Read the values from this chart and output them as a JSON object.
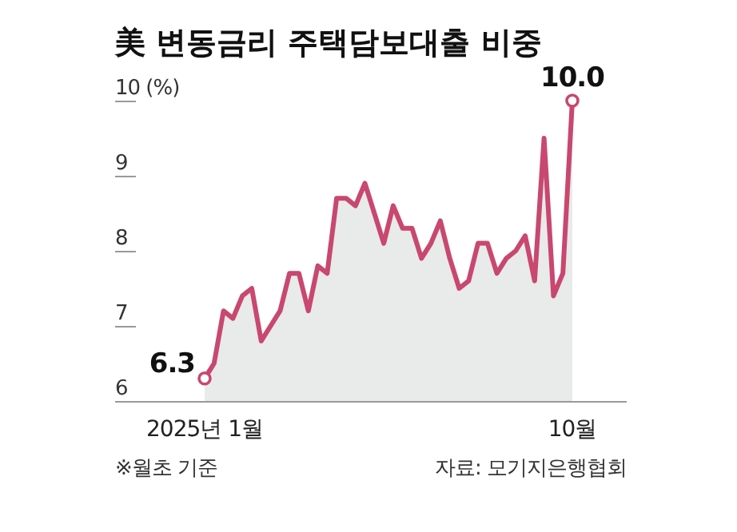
{
  "chart_data": {
    "type": "area",
    "title": "美 변동금리 주택담보대출 비중",
    "categories": [
      "2025년 1월",
      null,
      null,
      null,
      null,
      null,
      null,
      null,
      null,
      null,
      null,
      null,
      null,
      null,
      null,
      null,
      null,
      null,
      null,
      null,
      null,
      null,
      null,
      null,
      null,
      null,
      null,
      null,
      null,
      null,
      null,
      null,
      null,
      null,
      null,
      null,
      null,
      null,
      null,
      "10월"
    ],
    "series": [
      {
        "color": "#c8486f",
        "values": [
          6.3,
          6.5,
          7.2,
          7.1,
          7.4,
          7.5,
          6.8,
          7.0,
          7.2,
          7.7,
          7.7,
          7.2,
          7.8,
          7.7,
          8.7,
          8.7,
          8.6,
          8.9,
          8.5,
          8.1,
          8.6,
          8.3,
          8.3,
          7.9,
          8.1,
          8.4,
          7.9,
          7.5,
          7.6,
          8.1,
          8.1,
          7.7,
          7.9,
          8.0,
          8.2,
          7.6,
          9.5,
          7.4,
          7.7,
          10.0
        ]
      }
    ],
    "ylim": [
      6,
      10
    ],
    "yticks": [
      6,
      7,
      8,
      9,
      {
        "value": 10,
        "label": "10 (%)"
      }
    ],
    "grid": false,
    "marker": "none",
    "line_style": "solid",
    "annotations": [
      {
        "text": "6.3",
        "x": "2025년 1월",
        "y": 6.3
      },
      {
        "text": "10.0",
        "x": "10월",
        "y": 10.0
      },
      "※월초 기준",
      "자료: 모기지은행협회"
    ]
  }
}
